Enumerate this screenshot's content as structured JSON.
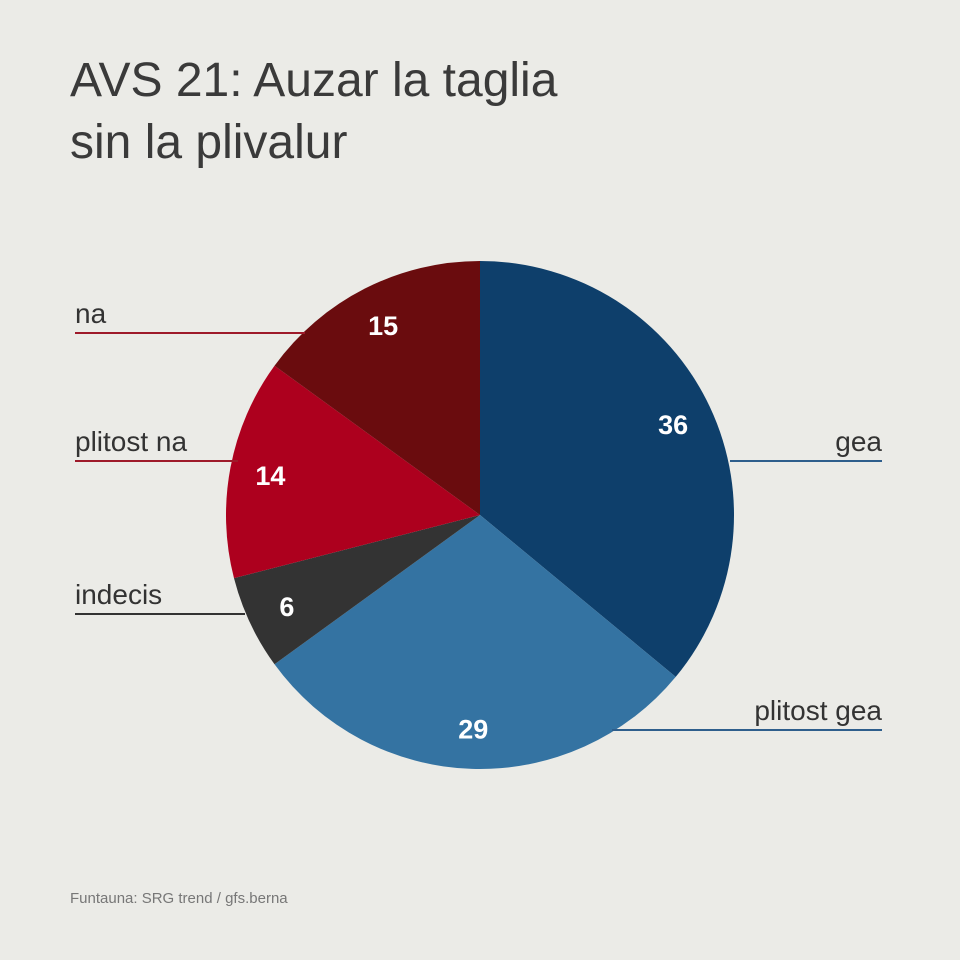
{
  "title_lines": [
    "AVS 21: Auzar la taglia",
    "sin la plivalur"
  ],
  "source": "Funtauna: SRG trend / gfs.berna",
  "chart_data": {
    "type": "pie",
    "start_angle_deg": 0,
    "direction": "clockwise",
    "slices": [
      {
        "label": "gea",
        "value": 36,
        "color": "#0E3F6B",
        "line_color": "#2E5E8C",
        "side": "right"
      },
      {
        "label": "plitost gea",
        "value": 29,
        "color": "#3473A2",
        "line_color": "#2E5E8C",
        "side": "right"
      },
      {
        "label": "indecis",
        "value": 6,
        "color": "#333333",
        "line_color": "#333333",
        "side": "left"
      },
      {
        "label": "plitost na",
        "value": 14,
        "color": "#AD001E",
        "line_color": "#9E1A2A",
        "side": "left"
      },
      {
        "label": "na",
        "value": 15,
        "color": "#6A0C0E",
        "line_color": "#9E1A2A",
        "side": "left"
      }
    ]
  }
}
